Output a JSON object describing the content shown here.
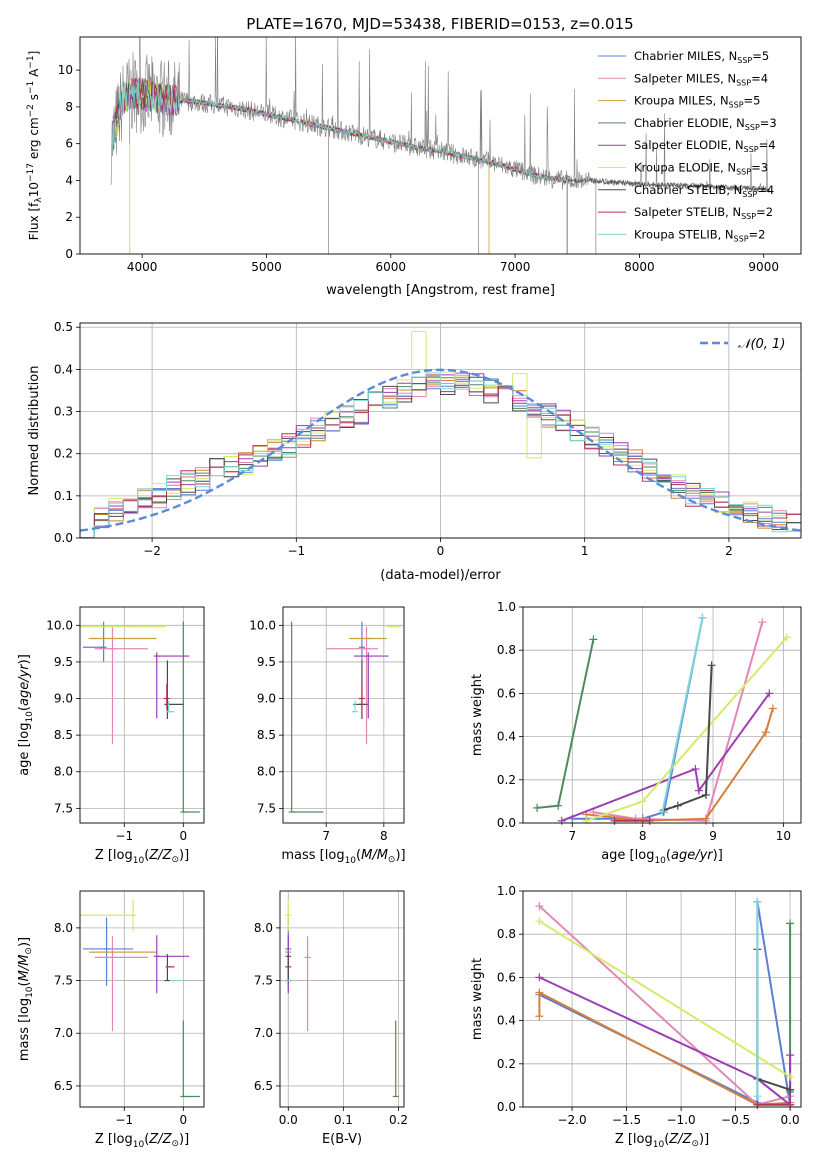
{
  "title": "PLATE=1670, MJD=53438, FIBERID=0153, z=0.015",
  "colors": {
    "Chabrier MILES": "#5b7fd4",
    "Salpeter MILES": "#e487b6",
    "Kroupa MILES": "#c8a040",
    "Chabrier ELODIE": "#4f8a5c",
    "Salpeter ELODIE": "#9b3fb5",
    "Kroupa ELODIE": "#d4ea6a",
    "Chabrier STELIB": "#4a4a4a",
    "Salpeter STELIB": "#b3334d",
    "Kroupa STELIB": "#7fd6d8",
    "Kroupa MILES line": "#d4803a",
    "data": "#808080",
    "gaussian": "#5b8ad6"
  },
  "chart_data": [
    {
      "id": "spectrum",
      "type": "line",
      "title": "PLATE=1670, MJD=53438, FIBERID=0153, z=0.015",
      "xlabel": "wavelength [Angstrom, rest frame]",
      "ylabel": "Flux [f_λ 10^-17 erg cm^-2 s^-1 A^-1]",
      "xlim": [
        3500,
        9300
      ],
      "ylim": [
        0,
        11.8
      ],
      "xticks": [
        4000,
        5000,
        6000,
        7000,
        8000,
        9000
      ],
      "yticks": [
        0,
        2,
        4,
        6,
        8,
        10
      ],
      "legend": "top-right",
      "legend_entries": [
        {
          "name": "Chabrier MILES",
          "sub": "SSP",
          "n": "5"
        },
        {
          "name": "Salpeter MILES",
          "sub": "SSP",
          "n": "4"
        },
        {
          "name": "Kroupa MILES",
          "sub": "SSP",
          "n": "5"
        },
        {
          "name": "Chabrier ELODIE",
          "sub": "SSP",
          "n": "3"
        },
        {
          "name": "Salpeter ELODIE",
          "sub": "SSP",
          "n": "4"
        },
        {
          "name": "Kroupa ELODIE",
          "sub": "SSP",
          "n": "3"
        },
        {
          "name": "Chabrier STELIB",
          "sub": "SSP",
          "n": "4"
        },
        {
          "name": "Salpeter STELIB",
          "sub": "SSP",
          "n": "2"
        },
        {
          "name": "Kroupa STELIB",
          "sub": "SSP",
          "n": "2"
        }
      ],
      "continuum": {
        "x": [
          3750,
          3850,
          3950,
          4050,
          4200,
          4400,
          4600,
          4800,
          5000,
          5200,
          5400,
          5600,
          5800,
          6000,
          6200,
          6400,
          6600,
          6800,
          7000,
          7200,
          7400,
          7600,
          7800,
          8000,
          8200,
          8400,
          8600,
          8800,
          9000,
          9050
        ],
        "y": [
          6.0,
          8.5,
          8.8,
          8.6,
          8.4,
          8.3,
          8.1,
          7.9,
          7.6,
          7.3,
          7.0,
          6.7,
          6.4,
          6.1,
          5.8,
          5.6,
          5.3,
          5.0,
          4.6,
          4.2,
          4.0,
          4.0,
          3.9,
          3.8,
          3.75,
          3.7,
          3.65,
          3.6,
          3.55,
          3.5
        ]
      }
    },
    {
      "id": "histogram",
      "type": "bar",
      "xlabel": "(data-model)/error",
      "ylabel": "Normed distribution",
      "xlim": [
        -2.5,
        2.5
      ],
      "ylim": [
        0,
        0.51
      ],
      "xticks": [
        -2,
        -1,
        0,
        1,
        2
      ],
      "yticks": [
        0.0,
        0.1,
        0.2,
        0.3,
        0.4,
        0.5
      ],
      "legend": "top-right",
      "gaussian_label": "𝒩(0, 1)",
      "bin_width": 0.1,
      "bin_start": -2.5,
      "base": [
        0.03,
        0.05,
        0.07,
        0.08,
        0.09,
        0.1,
        0.12,
        0.13,
        0.14,
        0.16,
        0.17,
        0.18,
        0.19,
        0.21,
        0.22,
        0.24,
        0.26,
        0.27,
        0.29,
        0.3,
        0.32,
        0.33,
        0.35,
        0.36,
        0.37,
        0.37,
        0.37,
        0.36,
        0.35,
        0.34,
        0.33,
        0.31,
        0.29,
        0.28,
        0.26,
        0.24,
        0.22,
        0.2,
        0.18,
        0.16,
        0.14,
        0.12,
        0.1,
        0.09,
        0.08,
        0.07,
        0.06,
        0.05,
        0.04,
        0.035
      ]
    },
    {
      "id": "age-vs-Z",
      "type": "scatter",
      "xlabel": "Z [log10(Z/Z⊙)]",
      "ylabel": "age [log10(age/yr)]",
      "xlim": [
        -1.75,
        0.35
      ],
      "ylim": [
        7.3,
        10.25
      ],
      "xticks": [
        -1,
        0
      ],
      "yticks": [
        7.5,
        8.0,
        8.5,
        9.0,
        9.5,
        10.0
      ],
      "points": [
        {
          "series": "Chabrier MILES",
          "x": -1.35,
          "xerr": [
            0.35,
            0.0
          ],
          "y": 9.7,
          "yerr": [
            0.2,
            0.35
          ]
        },
        {
          "series": "Salpeter MILES",
          "x": -1.2,
          "xerr": [
            0.3,
            0.6
          ],
          "y": 9.68,
          "yerr": [
            1.3,
            0.3
          ]
        },
        {
          "series": "Kroupa MILES",
          "x": -1.55,
          "xerr": [
            0.0,
            1.1
          ],
          "y": 9.82,
          "yerr": [
            0.0,
            0.0
          ]
        },
        {
          "series": "Chabrier ELODIE",
          "x": 0.0,
          "xerr": [
            0.0,
            0.28
          ],
          "y": 7.45,
          "yerr": [
            0.0,
            2.6
          ]
        },
        {
          "series": "Salpeter ELODIE",
          "x": -0.45,
          "xerr": [
            0.0,
            0.55
          ],
          "y": 9.58,
          "yerr": [
            0.85,
            0.05
          ]
        },
        {
          "series": "Kroupa ELODIE",
          "x": -0.9,
          "xerr": [
            0.9,
            0.6
          ],
          "y": 9.98,
          "yerr": [
            0.0,
            0.0
          ]
        },
        {
          "series": "Chabrier STELIB",
          "x": -0.27,
          "xerr": [
            0.0,
            0.27
          ],
          "y": 8.92,
          "yerr": [
            0.2,
            0.6
          ]
        },
        {
          "series": "Salpeter STELIB",
          "x": -0.28,
          "xerr": [
            0.0,
            0.0
          ],
          "y": 9.0,
          "yerr": [
            0.15,
            0.2
          ]
        },
        {
          "series": "Kroupa STELIB",
          "x": -0.25,
          "xerr": [
            0.0,
            0.1
          ],
          "y": 8.82,
          "yerr": [
            0.0,
            0.15
          ]
        }
      ]
    },
    {
      "id": "age-vs-mass",
      "type": "scatter",
      "xlabel": "mass [log10(M/M⊙)]",
      "ylabel": "",
      "xlim": [
        6.25,
        8.35
      ],
      "ylim": [
        7.3,
        10.25
      ],
      "xticks": [
        7,
        8
      ],
      "yticks": [
        7.5,
        8.0,
        8.5,
        9.0,
        9.5,
        10.0
      ],
      "points": [
        {
          "series": "Chabrier MILES",
          "x": 7.62,
          "xerr": [
            0.0,
            0.0
          ],
          "y": 9.7,
          "yerr": [
            0.2,
            0.35
          ]
        },
        {
          "series": "Salpeter MILES",
          "x": 7.7,
          "xerr": [
            0.7,
            0.2
          ],
          "y": 9.68,
          "yerr": [
            1.3,
            0.3
          ]
        },
        {
          "series": "Kroupa MILES",
          "x": 7.75,
          "xerr": [
            0.35,
            0.3
          ],
          "y": 9.82,
          "yerr": [
            0.0,
            0.0
          ]
        },
        {
          "series": "Chabrier ELODIE",
          "x": 6.4,
          "xerr": [
            0.0,
            0.55
          ],
          "y": 7.45,
          "yerr": [
            0.0,
            2.6
          ]
        },
        {
          "series": "Salpeter ELODIE",
          "x": 7.73,
          "xerr": [
            0.25,
            0.35
          ],
          "y": 9.58,
          "yerr": [
            0.85,
            0.05
          ]
        },
        {
          "series": "Kroupa ELODIE",
          "x": 8.1,
          "xerr": [
            0.0,
            0.2
          ],
          "y": 9.98,
          "yerr": [
            0.0,
            0.0
          ]
        },
        {
          "series": "Chabrier STELIB",
          "x": 7.62,
          "xerr": [
            0.15,
            0.1
          ],
          "y": 8.92,
          "yerr": [
            0.2,
            0.6
          ]
        },
        {
          "series": "Salpeter STELIB",
          "x": 7.62,
          "xerr": [
            0.0,
            0.0
          ],
          "y": 9.0,
          "yerr": [
            0.15,
            0.2
          ]
        },
        {
          "series": "Kroupa STELIB",
          "x": 7.5,
          "xerr": [
            0.0,
            0.0
          ],
          "y": 8.82,
          "yerr": [
            0.0,
            0.15
          ]
        }
      ]
    },
    {
      "id": "mass-weight-vs-age",
      "type": "line",
      "xlabel": "age [log10(age/yr)]",
      "ylabel": "mass weight",
      "xlim": [
        6.3,
        10.25
      ],
      "ylim": [
        0,
        1.0
      ],
      "xticks": [
        7,
        8,
        9,
        10
      ],
      "yticks": [
        0.0,
        0.2,
        0.4,
        0.6,
        0.8,
        1.0
      ],
      "series": [
        {
          "name": "Chabrier MILES",
          "x": [
            7.0,
            8.0,
            8.3,
            8.85
          ],
          "y": [
            0.02,
            0.02,
            0.05,
            0.95
          ]
        },
        {
          "name": "Salpeter MILES",
          "x": [
            7.3,
            7.9,
            8.9,
            9.7
          ],
          "y": [
            0.05,
            0.02,
            0.01,
            0.93
          ]
        },
        {
          "name": "Kroupa MILES",
          "x": [
            7.2,
            8.0,
            8.9,
            9.75,
            9.85
          ],
          "y": [
            0.04,
            0.01,
            0.02,
            0.42,
            0.53
          ]
        },
        {
          "name": "Chabrier ELODIE",
          "x": [
            6.5,
            6.8,
            7.3
          ],
          "y": [
            0.07,
            0.08,
            0.85
          ]
        },
        {
          "name": "Salpeter ELODIE",
          "x": [
            6.85,
            8.75,
            8.8,
            9.8
          ],
          "y": [
            0.01,
            0.25,
            0.15,
            0.6
          ]
        },
        {
          "name": "Kroupa ELODIE",
          "x": [
            7.2,
            8.0,
            10.05
          ],
          "y": [
            0.01,
            0.1,
            0.86
          ]
        },
        {
          "name": "Chabrier STELIB",
          "x": [
            8.3,
            8.5,
            8.9,
            8.98
          ],
          "y": [
            0.06,
            0.08,
            0.13,
            0.73
          ]
        },
        {
          "name": "Salpeter STELIB",
          "x": [
            7.6,
            8.1
          ],
          "y": [
            0.01,
            0.01
          ]
        },
        {
          "name": "Kroupa STELIB",
          "x": [
            8.28,
            8.85
          ],
          "y": [
            0.05,
            0.95
          ]
        }
      ]
    },
    {
      "id": "mass-vs-Z",
      "type": "scatter",
      "xlabel": "Z [log10(Z/Z⊙)]",
      "ylabel": "mass [log10(M/M⊙)]",
      "xlim": [
        -1.75,
        0.35
      ],
      "ylim": [
        6.3,
        8.35
      ],
      "xticks": [
        -1,
        0
      ],
      "yticks": [
        6.5,
        7.0,
        7.5,
        8.0
      ],
      "points": [
        {
          "series": "Chabrier MILES",
          "x": -1.3,
          "xerr": [
            0.4,
            0.45
          ],
          "y": 7.8,
          "yerr": [
            0.35,
            0.3
          ]
        },
        {
          "series": "Salpeter MILES",
          "x": -1.2,
          "xerr": [
            0.3,
            0.6
          ],
          "y": 7.72,
          "yerr": [
            0.7,
            0.2
          ]
        },
        {
          "series": "Kroupa MILES",
          "x": -1.55,
          "xerr": [
            0.0,
            1.1
          ],
          "y": 7.77,
          "yerr": [
            0.0,
            0.0
          ]
        },
        {
          "series": "Chabrier ELODIE",
          "x": 0.0,
          "xerr": [
            0.0,
            0.28
          ],
          "y": 6.4,
          "yerr": [
            0.0,
            0.72
          ]
        },
        {
          "series": "Salpeter ELODIE",
          "x": -0.45,
          "xerr": [
            0.0,
            0.55
          ],
          "y": 7.73,
          "yerr": [
            0.35,
            0.2
          ]
        },
        {
          "series": "Kroupa ELODIE",
          "x": -0.85,
          "xerr": [
            0.9,
            0.0
          ],
          "y": 8.12,
          "yerr": [
            0.15,
            0.15
          ]
        },
        {
          "series": "Chabrier STELIB",
          "x": -0.27,
          "xerr": [
            0.0,
            0.0
          ],
          "y": 7.5,
          "yerr": [
            0.0,
            0.25
          ]
        },
        {
          "series": "Salpeter STELIB",
          "x": -0.2,
          "xerr": [
            0.1,
            0.0
          ],
          "y": 7.63,
          "yerr": [
            0.0,
            0.0
          ]
        },
        {
          "series": "Kroupa STELIB",
          "x": -0.18,
          "xerr": [
            0.0,
            0.15
          ],
          "y": 7.5,
          "yerr": [
            0.0,
            0.0
          ]
        }
      ]
    },
    {
      "id": "mass-vs-EBV",
      "type": "scatter",
      "xlabel": "E(B-V)",
      "ylabel": "",
      "xlim": [
        -0.015,
        0.21
      ],
      "ylim": [
        6.3,
        8.35
      ],
      "xticks": [
        0.0,
        0.1,
        0.2
      ],
      "yticks": [
        6.5,
        7.0,
        7.5,
        8.0
      ],
      "points": [
        {
          "series": "Chabrier MILES",
          "x": 0.0,
          "y": 7.8,
          "yerr": [
            0.35,
            0.3
          ]
        },
        {
          "series": "Salpeter MILES",
          "x": 0.035,
          "y": 7.72,
          "yerr": [
            0.7,
            0.2
          ]
        },
        {
          "series": "Kroupa MILES",
          "x": 0.0,
          "y": 7.77,
          "yerr": [
            0.0,
            0.0
          ]
        },
        {
          "series": "Chabrier ELODIE",
          "x": 0.195,
          "y": 6.4,
          "yerr": [
            0.0,
            0.72
          ]
        },
        {
          "series": "Salpeter ELODIE",
          "x": 0.0,
          "y": 7.73,
          "yerr": [
            0.35,
            0.2
          ]
        },
        {
          "series": "Kroupa ELODIE",
          "x": 0.0,
          "y": 8.12,
          "yerr": [
            0.15,
            0.15
          ]
        },
        {
          "series": "Chabrier STELIB",
          "x": 0.0,
          "y": 7.5,
          "yerr": [
            0.0,
            0.25
          ]
        },
        {
          "series": "Salpeter STELIB",
          "x": 0.0,
          "y": 7.63,
          "yerr": [
            0.0,
            0.0
          ]
        },
        {
          "series": "Kroupa STELIB",
          "x": 0.0,
          "y": 7.5,
          "yerr": [
            0.0,
            0.0
          ]
        }
      ]
    },
    {
      "id": "mass-weight-vs-Z",
      "type": "line",
      "xlabel": "Z [log10(Z/Z⊙)]",
      "ylabel": "mass weight",
      "xlim": [
        -2.45,
        0.1
      ],
      "ylim": [
        0,
        1.0
      ],
      "xticks": [
        -2.0,
        -1.5,
        -1.0,
        -0.5,
        0.0
      ],
      "yticks": [
        0.0,
        0.2,
        0.4,
        0.6,
        0.8,
        1.0
      ],
      "series": [
        {
          "name": "Chabrier MILES",
          "x": [
            -2.3,
            -0.3,
            -0.3,
            0.0
          ],
          "y": [
            0.52,
            0.02,
            0.95,
            0.01
          ]
        },
        {
          "name": "Salpeter MILES",
          "x": [
            -2.3,
            -0.3,
            0.0
          ],
          "y": [
            0.93,
            0.01,
            0.05
          ]
        },
        {
          "name": "Kroupa MILES",
          "x": [
            -2.3,
            -2.3,
            -0.3,
            0.0
          ],
          "y": [
            0.42,
            0.53,
            0.01,
            0.02
          ]
        },
        {
          "name": "Chabrier ELODIE",
          "x": [
            0.0,
            0.0,
            0.0
          ],
          "y": [
            0.07,
            0.85,
            0.08
          ]
        },
        {
          "name": "Salpeter ELODIE",
          "x": [
            -2.3,
            -0.3,
            0.0,
            0.0
          ],
          "y": [
            0.6,
            0.13,
            0.01,
            0.24
          ]
        },
        {
          "name": "Kroupa ELODIE",
          "x": [
            -2.3,
            0.0
          ],
          "y": [
            0.86,
            0.14
          ]
        },
        {
          "name": "Chabrier STELIB",
          "x": [
            -0.3,
            -0.3,
            0.0
          ],
          "y": [
            0.73,
            0.13,
            0.08
          ]
        },
        {
          "name": "Salpeter STELIB",
          "x": [
            -0.3,
            0.0
          ],
          "y": [
            0.01,
            0.01
          ]
        },
        {
          "name": "Kroupa STELIB",
          "x": [
            -0.3,
            -0.3
          ],
          "y": [
            0.05,
            0.95
          ]
        }
      ]
    }
  ]
}
